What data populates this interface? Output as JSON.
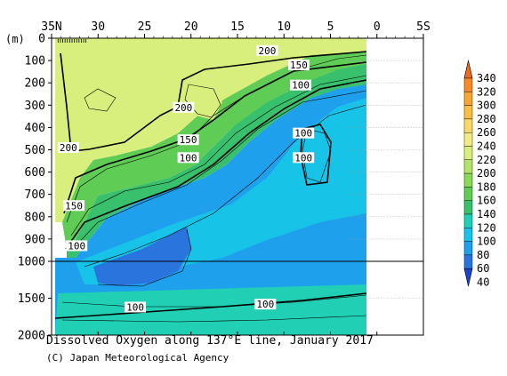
{
  "chart_data": {
    "type": "contour",
    "title": "Dissolved Oxygen along 137°E line, January 2017",
    "credit": "(C) Japan Meteorological Agency",
    "ylabel": "(m)",
    "x_ticks": [
      "35N",
      "30",
      "25",
      "20",
      "15",
      "10",
      "5",
      "0",
      "5S"
    ],
    "x_tick_values": [
      35,
      30,
      25,
      20,
      15,
      10,
      5,
      0,
      -5
    ],
    "xlim": [
      35,
      -5
    ],
    "ylim": [
      2000,
      0
    ],
    "y_ticks_upper": [
      0,
      100,
      200,
      300,
      400,
      500,
      600,
      700,
      800,
      900,
      1000
    ],
    "y_ticks_lower": [
      1500,
      2000
    ],
    "y_axis_break": 1000,
    "colorbar": {
      "levels": [
        340,
        320,
        300,
        280,
        260,
        240,
        220,
        200,
        180,
        160,
        140,
        120,
        100,
        80,
        60,
        40
      ],
      "colors": [
        "#f26a1f",
        "#f58a2a",
        "#f7a535",
        "#f9bf45",
        "#f9d868",
        "#f2ec84",
        "#d9ef7d",
        "#b2e36a",
        "#8bd958",
        "#5ecc55",
        "#38c06c",
        "#21d0b4",
        "#17c4e8",
        "#1ea0ec",
        "#2a74de",
        "#1a44d0"
      ]
    },
    "contour_labels": [
      {
        "value": "200",
        "lat": 20.8,
        "depth": 310
      },
      {
        "value": "200",
        "lat": 33.2,
        "depth": 490
      },
      {
        "value": "200",
        "lat": 11.8,
        "depth": 55
      },
      {
        "value": "150",
        "lat": 20.3,
        "depth": 455
      },
      {
        "value": "150",
        "lat": 8.4,
        "depth": 120
      },
      {
        "value": "150",
        "lat": 32.6,
        "depth": 750
      },
      {
        "value": "100",
        "lat": 20.3,
        "depth": 535
      },
      {
        "value": "100",
        "lat": 8.2,
        "depth": 210
      },
      {
        "value": "100",
        "lat": 7.9,
        "depth": 425
      },
      {
        "value": "100",
        "lat": 7.9,
        "depth": 535
      },
      {
        "value": "100",
        "lat": 32.3,
        "depth": 930
      },
      {
        "value": "100",
        "lat": 26.0,
        "depth": 1620
      },
      {
        "value": "100",
        "lat": 12.0,
        "depth": 1580
      }
    ],
    "data_extent_lat": [
      34.3,
      3.0
    ]
  }
}
